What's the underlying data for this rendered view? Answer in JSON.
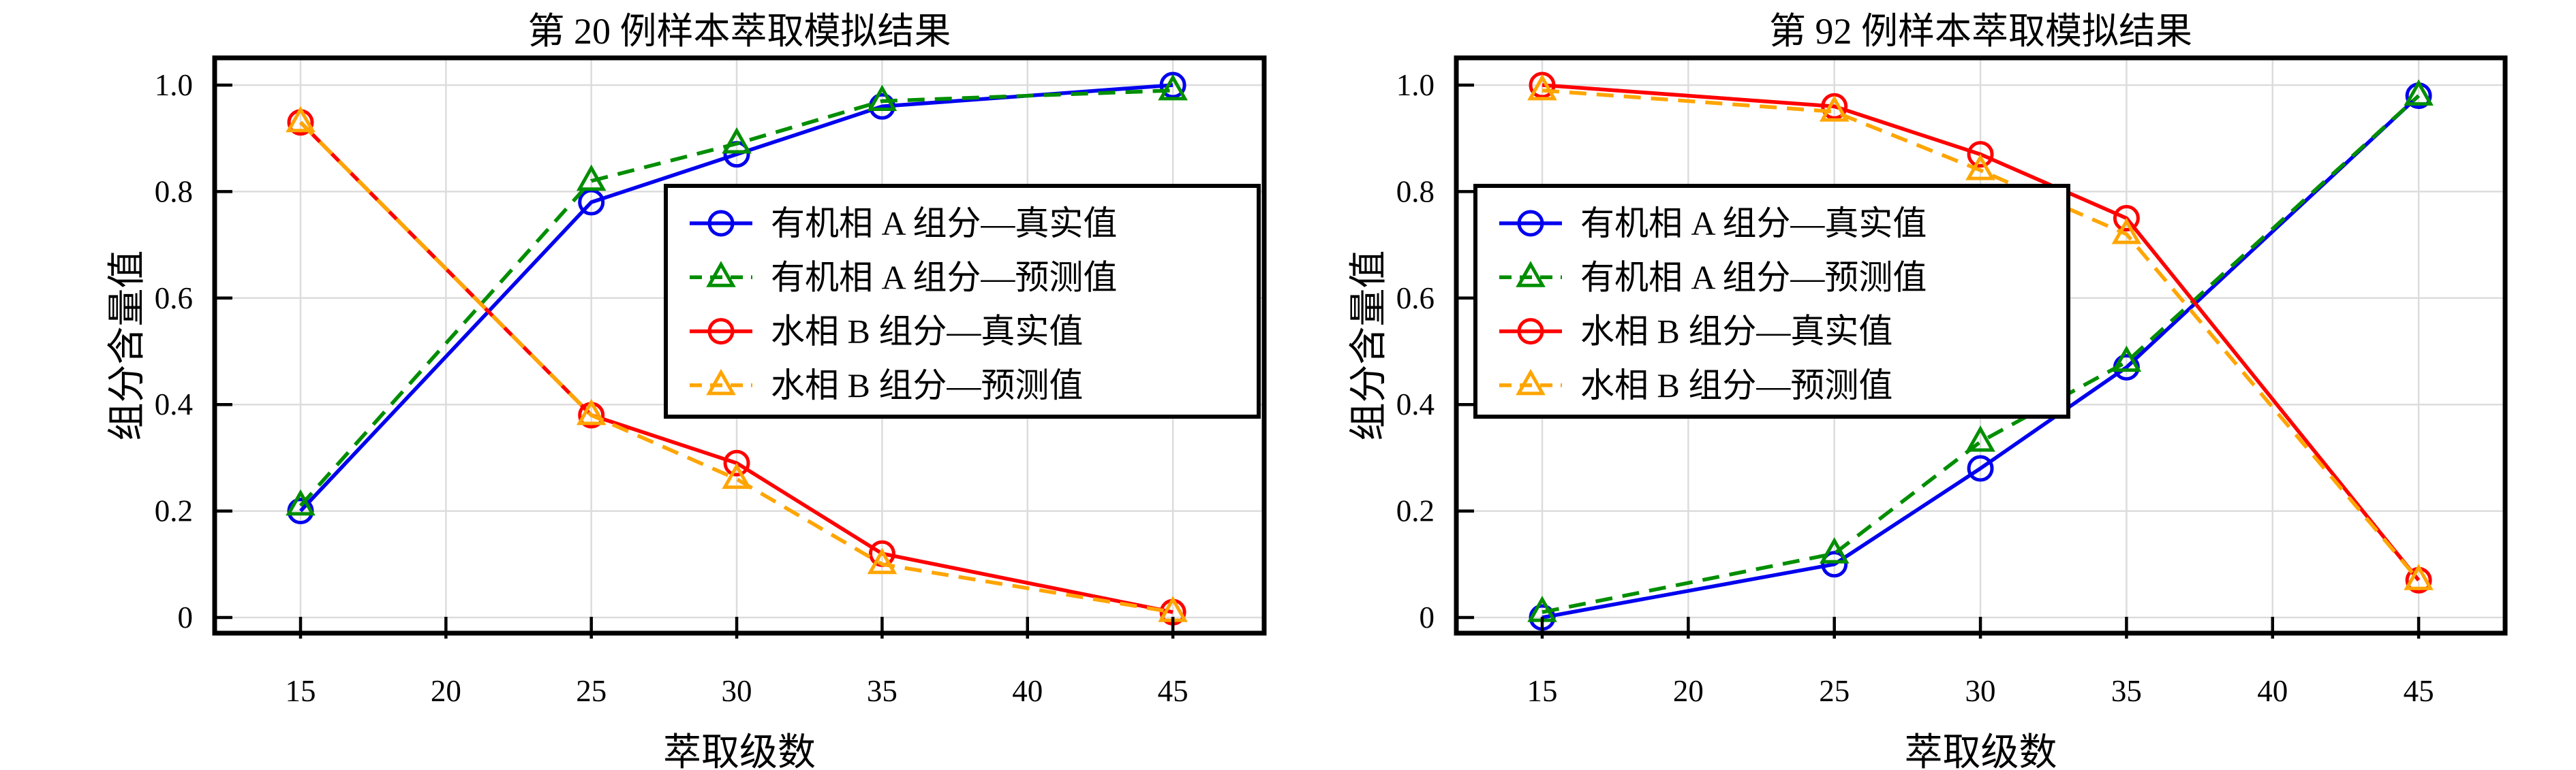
{
  "figure": {
    "background": "#FFFFFF",
    "text_color": "#000000",
    "axis_color": "#000000",
    "grid_color": "#DCDCDC"
  },
  "chart_data": [
    {
      "type": "line",
      "title": "第 20 例样本萃取模拟结果",
      "xlabel": "萃取级数",
      "ylabel": "组分含量值",
      "x": [
        15,
        25,
        30,
        35,
        45
      ],
      "x_ticks": [
        15,
        20,
        25,
        30,
        35,
        40,
        45
      ],
      "y_tick_values": [
        0,
        0.2,
        0.4,
        0.6,
        0.8,
        1.0
      ],
      "y_tick_labels": [
        "0",
        "0.2",
        "0.4",
        "0.6",
        "0.8",
        "1.0"
      ],
      "xlim": [
        12,
        48.1
      ],
      "ylim": [
        -0.03,
        1.05
      ],
      "grid": true,
      "legend_position": "center-right",
      "series": [
        {
          "name": "有机相 A 组分—真实值",
          "color": "#0000EE",
          "marker": "circle",
          "line_style": "solid",
          "values": [
            0.2,
            0.78,
            0.87,
            0.96,
            1.0
          ]
        },
        {
          "name": "有机相 A 组分—预测值",
          "color": "#008E00",
          "marker": "triangle",
          "line_style": "dashed",
          "values": [
            0.21,
            0.82,
            0.89,
            0.97,
            0.99
          ]
        },
        {
          "name": "水相 B 组分—真实值",
          "color": "#FF0000",
          "marker": "circle",
          "line_style": "solid",
          "values": [
            0.93,
            0.38,
            0.29,
            0.12,
            0.01
          ]
        },
        {
          "name": "水相 B 组分—预测值",
          "color": "#FFA500",
          "marker": "triangle",
          "line_style": "dashed",
          "values": [
            0.93,
            0.38,
            0.26,
            0.1,
            0.01
          ]
        }
      ]
    },
    {
      "type": "line",
      "title": "第 92 例样本萃取模拟结果",
      "xlabel": "萃取级数",
      "ylabel": "组分含量值",
      "x": [
        15,
        25,
        30,
        35,
        45
      ],
      "x_ticks": [
        15,
        20,
        25,
        30,
        35,
        40,
        45
      ],
      "y_tick_values": [
        0,
        0.2,
        0.4,
        0.6,
        0.8,
        1.0
      ],
      "y_tick_labels": [
        "0",
        "0.2",
        "0.4",
        "0.6",
        "0.8",
        "1.0"
      ],
      "xlim": [
        12,
        48
      ],
      "ylim": [
        -0.03,
        1.05
      ],
      "grid": true,
      "legend_position": "center-left",
      "series": [
        {
          "name": "有机相 A 组分—真实值",
          "color": "#0000EE",
          "marker": "circle",
          "line_style": "solid",
          "values": [
            0.0,
            0.1,
            0.28,
            0.47,
            0.98
          ]
        },
        {
          "name": "有机相 A 组分—预测值",
          "color": "#008E00",
          "marker": "triangle",
          "line_style": "dashed",
          "values": [
            0.01,
            0.12,
            0.33,
            0.48,
            0.98
          ]
        },
        {
          "name": "水相 B 组分—真实值",
          "color": "#FF0000",
          "marker": "circle",
          "line_style": "solid",
          "values": [
            1.0,
            0.96,
            0.87,
            0.75,
            0.07
          ]
        },
        {
          "name": "水相 B 组分—预测值",
          "color": "#FFA500",
          "marker": "triangle",
          "line_style": "dashed",
          "values": [
            0.99,
            0.95,
            0.84,
            0.72,
            0.07
          ]
        }
      ]
    }
  ]
}
